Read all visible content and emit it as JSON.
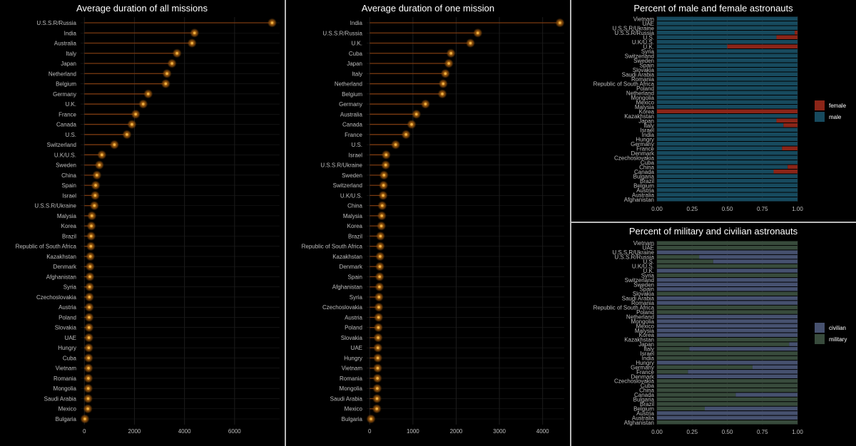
{
  "colors": {
    "background": "#000000",
    "grid": "#1c1c1c",
    "lollipop_stem": "#7a3a10",
    "lollipop_glow": "#8a4d0c",
    "lollipop_core": "#f0b040",
    "female": "#8b2518",
    "male": "#174a5e",
    "civilian": "#46516f",
    "military": "#384b3c",
    "separator": "#b8b8b8"
  },
  "chart_data": [
    {
      "type": "lollipop",
      "title": "Average duration of all missions",
      "xticks": [
        0,
        2000,
        4000,
        6000
      ],
      "xlim": [
        -150,
        7800
      ],
      "categories": [
        "U.S.S.R/Russia",
        "India",
        "Australia",
        "Italy",
        "Japan",
        "Netherland",
        "Belgium",
        "Germany",
        "U.K.",
        "France",
        "Canada",
        "U.S.",
        "Switzerland",
        "U.K/U.S.",
        "Sweden",
        "China",
        "Spain",
        "Israel",
        "U.S.S.R/Ukraine",
        "Malysia",
        "Korea",
        "Brazil",
        "Republic of South Africa",
        "Kazakhstan",
        "Denmark",
        "Afghanistan",
        "Syria",
        "Czechoslovakia",
        "Austria",
        "Poland",
        "Slovakia",
        "UAE",
        "Hungry",
        "Cuba",
        "Vietnam",
        "Romania",
        "Mongolia",
        "Saudi Arabia",
        "Mexico",
        "Bulgaria"
      ],
      "values": [
        7500,
        4400,
        4300,
        3700,
        3500,
        3300,
        3250,
        2550,
        2350,
        2050,
        1900,
        1700,
        1200,
        700,
        600,
        500,
        450,
        430,
        400,
        300,
        280,
        270,
        260,
        240,
        230,
        220,
        210,
        200,
        195,
        190,
        185,
        180,
        175,
        170,
        165,
        160,
        155,
        150,
        140,
        20
      ]
    },
    {
      "type": "lollipop",
      "title": "Average duration of one mission",
      "xticks": [
        0,
        1000,
        2000,
        3000,
        4000
      ],
      "xlim": [
        -70,
        4500
      ],
      "categories": [
        "India",
        "U.S.S.R/Russia",
        "U.K.",
        "Cuba",
        "Japan",
        "Italy",
        "Netherland",
        "Belgium",
        "Germany",
        "Australia",
        "Canada",
        "France",
        "U.S.",
        "Israel",
        "U.S.S.R/Ukraine",
        "Sweden",
        "Switzerland",
        "U.K/U.S.",
        "China",
        "Malysia",
        "Korea",
        "Brazil",
        "Republic of South Africa",
        "Kazakhstan",
        "Denmark",
        "Spain",
        "Afghanistan",
        "Syria",
        "Czechoslovakia",
        "Austria",
        "Poland",
        "Slovakia",
        "UAE",
        "Hungry",
        "Vietnam",
        "Romania",
        "Mongolia",
        "Saudi Arabia",
        "Mexico",
        "Bulgaria"
      ],
      "values": [
        4400,
        2500,
        2330,
        1880,
        1830,
        1750,
        1700,
        1680,
        1290,
        1080,
        970,
        840,
        600,
        380,
        370,
        330,
        320,
        310,
        290,
        280,
        270,
        250,
        245,
        240,
        235,
        230,
        225,
        215,
        210,
        205,
        200,
        195,
        190,
        188,
        185,
        180,
        175,
        170,
        165,
        30
      ]
    },
    {
      "type": "stacked-bar",
      "title": "Percent of male and female astronauts",
      "xticks": [
        "0.00",
        "0.25",
        "0.50",
        "0.75",
        "1.00"
      ],
      "xlim": [
        0,
        1
      ],
      "legend": [
        "female",
        "male"
      ],
      "legend_position": "right",
      "categories": [
        "Vietnam",
        "UAE",
        "U.S.S.R/Ukraine",
        "U.S.S.R/Russia",
        "U.S.",
        "U.K/U.S.",
        "U.K.",
        "Syria",
        "Switzerland",
        "Sweden",
        "Spain",
        "Slovakia",
        "Saudi Arabia",
        "Romania",
        "Republic of South Africa",
        "Poland",
        "Netherland",
        "Mongolia",
        "Mexico",
        "Malysia",
        "Korea",
        "Kazakhstan",
        "Japan",
        "Italy",
        "Israel",
        "India",
        "Hungry",
        "Germany",
        "France",
        "Denmark",
        "Czechoslovakia",
        "Cuba",
        "China",
        "Canada",
        "Bulgaria",
        "Brazil",
        "Belgium",
        "Austria",
        "Australia",
        "Afghanistan"
      ],
      "female_share": [
        0,
        0,
        0,
        0.02,
        0.15,
        0,
        0.5,
        0,
        0,
        0,
        0,
        0,
        0,
        0,
        0,
        0,
        0,
        0,
        0,
        0,
        1,
        0,
        0.15,
        0.1,
        0,
        0,
        0,
        0,
        0.11,
        0,
        0,
        0,
        0.07,
        0.17,
        0,
        0,
        0,
        0,
        0,
        0
      ]
    },
    {
      "type": "stacked-bar",
      "title": "Percent of military and civilian astronauts",
      "xticks": [
        "0.00",
        "0.25",
        "0.50",
        "0.75",
        "1.00"
      ],
      "xlim": [
        0,
        1
      ],
      "legend": [
        "civilian",
        "military"
      ],
      "legend_position": "right",
      "categories": [
        "Vietnam",
        "UAE",
        "U.S.S.R/Ukraine",
        "U.S.S.R/Russia",
        "U.S.",
        "U.K/U.S.",
        "U.K.",
        "Syria",
        "Switzerland",
        "Sweden",
        "Spain",
        "Slovakia",
        "Saudi Arabia",
        "Romania",
        "Republic of South Africa",
        "Poland",
        "Netherland",
        "Mongolia",
        "Mexico",
        "Malysia",
        "Korea",
        "Kazakhstan",
        "Japan",
        "Italy",
        "Israel",
        "India",
        "Hungry",
        "Germany",
        "France",
        "Denmark",
        "Czechoslovakia",
        "Cuba",
        "China",
        "Canada",
        "Bulgaria",
        "Brazil",
        "Belgium",
        "Austria",
        "Australia",
        "Afghanistan"
      ],
      "civilian_share": [
        0,
        0,
        1,
        0.7,
        0.6,
        0,
        1,
        0,
        1,
        1,
        1,
        0,
        1,
        1,
        0,
        0,
        1,
        1,
        1,
        1,
        1,
        0,
        0.06,
        0.77,
        0,
        0,
        1,
        0.32,
        0.78,
        1,
        0,
        0,
        0,
        0.44,
        0,
        0,
        0.66,
        1,
        1,
        0
      ]
    }
  ]
}
